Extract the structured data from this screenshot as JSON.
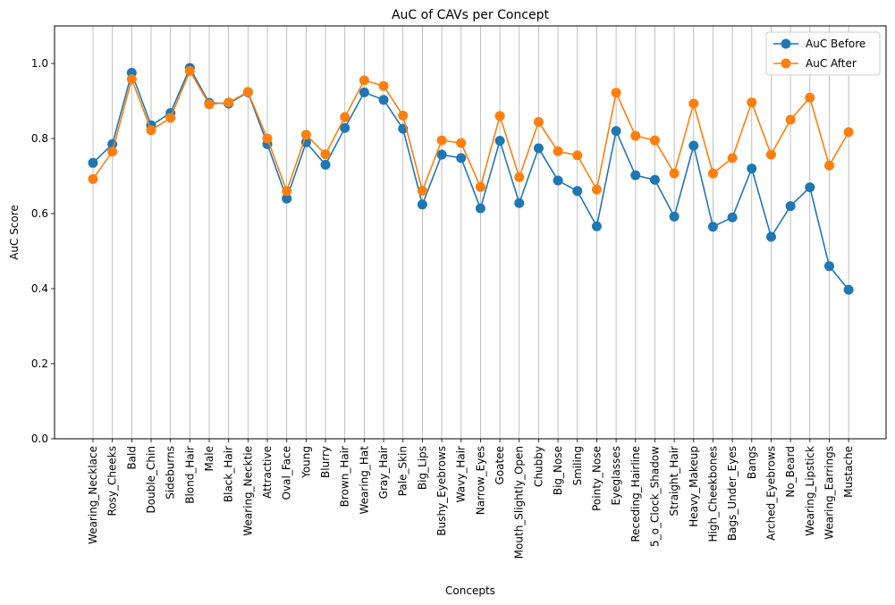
{
  "chart_data": {
    "type": "line",
    "title": "AuC of CAVs per Concept",
    "xlabel": "Concepts",
    "ylabel": "AuC Score",
    "ylim": [
      0.0,
      1.1
    ],
    "yticks": [
      "0.0",
      "0.2",
      "0.4",
      "0.6",
      "0.8",
      "1.0"
    ],
    "ytick_values": [
      0.0,
      0.2,
      0.4,
      0.6,
      0.8,
      1.0
    ],
    "grid": "vertical lines at each category",
    "legend_position": "top-right",
    "categories": [
      "Wearing_Necklace",
      "Rosy_Cheeks",
      "Bald",
      "Double_Chin",
      "Sideburns",
      "Blond_Hair",
      "Male",
      "Black_Hair",
      "Wearing_Necktie",
      "Attractive",
      "Oval_Face",
      "Young",
      "Blurry",
      "Brown_Hair",
      "Wearing_Hat",
      "Gray_Hair",
      "Pale_Skin",
      "Big_Lips",
      "Bushy_Eyebrows",
      "Wavy_Hair",
      "Narrow_Eyes",
      "Goatee",
      "Mouth_Slightly_Open",
      "Chubby",
      "Big_Nose",
      "Smiling",
      "Pointy_Nose",
      "Eyeglasses",
      "Receding_Hairline",
      "5_o_Clock_Shadow",
      "Straight_Hair",
      "Heavy_Makeup",
      "High_Cheekbones",
      "Bags_Under_Eyes",
      "Bangs",
      "Arched_Eyebrows",
      "No_Beard",
      "Wearing_Lipstick",
      "Wearing_Earrings",
      "Mustache"
    ],
    "series": [
      {
        "name": "AuC Before",
        "color": "#1f77b4",
        "values": [
          0.735,
          0.785,
          0.975,
          0.835,
          0.868,
          0.988,
          0.895,
          0.893,
          0.923,
          0.785,
          0.64,
          0.79,
          0.73,
          0.828,
          0.923,
          0.903,
          0.826,
          0.624,
          0.757,
          0.748,
          0.614,
          0.794,
          0.628,
          0.774,
          0.688,
          0.66,
          0.566,
          0.82,
          0.702,
          0.69,
          0.592,
          0.781,
          0.565,
          0.59,
          0.72,
          0.538,
          0.62,
          0.67,
          0.46,
          0.397
        ]
      },
      {
        "name": "AuC After",
        "color": "#ff7f0e",
        "values": [
          0.692,
          0.765,
          0.958,
          0.822,
          0.855,
          0.98,
          0.891,
          0.896,
          0.924,
          0.8,
          0.66,
          0.81,
          0.758,
          0.857,
          0.955,
          0.94,
          0.861,
          0.661,
          0.795,
          0.788,
          0.671,
          0.86,
          0.697,
          0.844,
          0.766,
          0.755,
          0.664,
          0.922,
          0.807,
          0.795,
          0.707,
          0.893,
          0.707,
          0.748,
          0.896,
          0.757,
          0.85,
          0.909,
          0.728,
          0.817
        ]
      }
    ]
  }
}
